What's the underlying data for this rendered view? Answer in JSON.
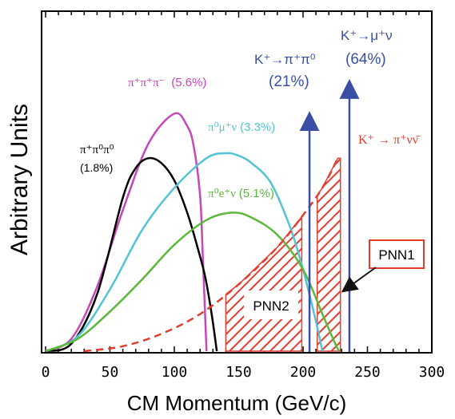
{
  "chart_data": {
    "type": "line",
    "xlabel": "CM Momentum (GeV/c)",
    "ylabel": "Arbitrary Units",
    "xlim": [
      0,
      300
    ],
    "ylim": [
      0,
      1
    ],
    "xticks": [
      "0",
      "50",
      "100",
      "150",
      "200",
      "250",
      "300"
    ],
    "xtick_values": [
      0,
      50,
      100,
      150,
      200,
      250,
      300
    ],
    "minor_xtick_step": 10,
    "grid": false,
    "series": [
      {
        "name": "π⁺π⁺π⁻ (5.6%)",
        "label_main": "π⁺π⁺π⁻",
        "label_br": "(5.6%)",
        "color": "#c746b8",
        "x": [
          0,
          20,
          40,
          60,
          80,
          100,
          110,
          115,
          120,
          122,
          125
        ],
        "y": [
          0,
          0.05,
          0.26,
          0.57,
          0.84,
          0.96,
          0.91,
          0.83,
          0.63,
          0.4,
          0
        ]
      },
      {
        "name": "π⁺π⁰π⁰ (1.8%)",
        "label_main": "π⁺π⁰π⁰",
        "label_br": "(1.8%)",
        "color": "#000000",
        "x": [
          0,
          20,
          40,
          60,
          70,
          80,
          90,
          100,
          110,
          118,
          124,
          129,
          133
        ],
        "y": [
          0,
          0.03,
          0.23,
          0.62,
          0.74,
          0.78,
          0.76,
          0.69,
          0.56,
          0.42,
          0.3,
          0.15,
          0
        ]
      },
      {
        "name": "π⁰μ⁺ν (3.3%)",
        "label_main": "π⁰μ⁺ν",
        "label_br": "(3.3%)",
        "color": "#53c3d6",
        "x": [
          0,
          25,
          50,
          75,
          100,
          125,
          140,
          150,
          160,
          175,
          190,
          200,
          210,
          215
        ],
        "y": [
          0,
          0.06,
          0.25,
          0.49,
          0.66,
          0.78,
          0.8,
          0.79,
          0.76,
          0.68,
          0.5,
          0.33,
          0.12,
          0
        ]
      },
      {
        "name": "π⁰e⁺ν (5.1%)",
        "label_main": "π⁰e⁺ν",
        "label_br": "(5.1%)",
        "color": "#5bb83a",
        "x": [
          0,
          25,
          50,
          75,
          100,
          125,
          145,
          160,
          180,
          200,
          215,
          225,
          228
        ],
        "y": [
          0,
          0.05,
          0.16,
          0.29,
          0.43,
          0.53,
          0.56,
          0.54,
          0.47,
          0.33,
          0.15,
          0.03,
          0
        ]
      },
      {
        "name": "K⁺ → π⁺νν̄",
        "label_main": "K⁺ → π⁺νν̄",
        "color": "#e53c2e",
        "dashed": true,
        "x": [
          30,
          60,
          90,
          120,
          150,
          180,
          200,
          215,
          227
        ],
        "y": [
          0,
          0.02,
          0.07,
          0.15,
          0.27,
          0.42,
          0.55,
          0.66,
          0.78
        ]
      }
    ],
    "signal_regions": [
      {
        "name": "PNN2",
        "label": "PNN2",
        "x_start": 140,
        "x_end": 199,
        "color": "#e53c2e"
      },
      {
        "name": "PNN1",
        "label": "PNN1",
        "x_start": 211,
        "x_end": 229,
        "color": "#e53c2e"
      }
    ],
    "two_body_peaks": [
      {
        "decay": "K⁺→π⁺π⁰",
        "decay_text": "K⁺→π⁺π⁰",
        "br": "(21%)",
        "x": 205,
        "y": 0.93,
        "color": "#3a4fa3"
      },
      {
        "decay": "K⁺→μ⁺ν",
        "decay_text": "K⁺→μ⁺ν",
        "br": "(64%)",
        "x": 236,
        "y": 1.06,
        "color": "#3a4fa3"
      }
    ]
  }
}
